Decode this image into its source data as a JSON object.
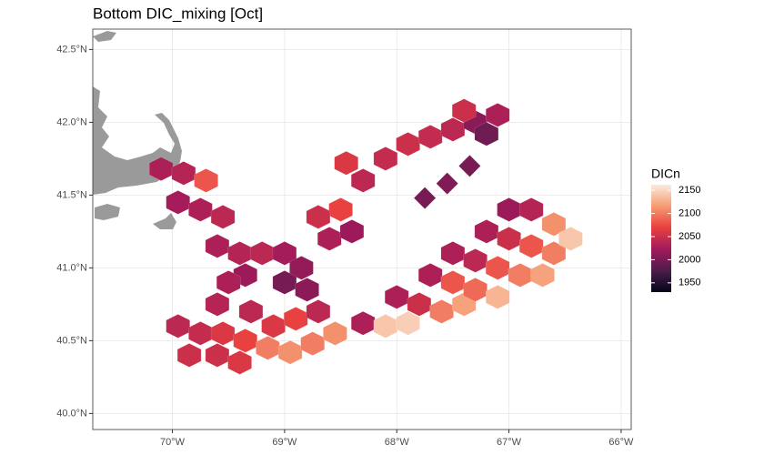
{
  "chart_data": {
    "type": "map",
    "title": "Bottom DIC_mixing [Oct]",
    "legend_title": "DICn",
    "xlim": [
      -70.71,
      -65.91
    ],
    "ylim": [
      39.89,
      42.64
    ],
    "xticks": [
      {
        "value": -70,
        "label": "70°W"
      },
      {
        "value": -69,
        "label": "69°W"
      },
      {
        "value": -68,
        "label": "68°W"
      },
      {
        "value": -67,
        "label": "67°W"
      },
      {
        "value": -66,
        "label": "66°W"
      }
    ],
    "yticks": [
      {
        "value": 40,
        "label": "40.0°N"
      },
      {
        "value": 40.5,
        "label": "40.5°N"
      },
      {
        "value": 41,
        "label": "41.0°N"
      },
      {
        "value": 41.5,
        "label": "41.5°N"
      },
      {
        "value": 42,
        "label": "42.0°N"
      },
      {
        "value": 42.5,
        "label": "42.5°N"
      }
    ],
    "grid": true,
    "colorlim": [
      1930,
      2162
    ],
    "colorticks": [
      1950,
      2000,
      2050,
      2100,
      2150
    ],
    "colorscale": [
      "#03051a",
      "#4c1d4b",
      "#a11a5b",
      "#e83f3f",
      "#f69c73",
      "#faebdd"
    ],
    "values": [
      2030,
      2035,
      2080,
      2025,
      2030,
      2040,
      2030,
      2035,
      2040,
      2020,
      2030,
      2025,
      2015,
      2000,
      2010,
      2030,
      2070,
      2050,
      2020,
      2040,
      2045,
      2050,
      2045,
      2040,
      2010,
      2030,
      1995,
      2050,
      2060,
      2000,
      2005,
      2000,
      2040,
      2045,
      2060,
      2070,
      2100,
      2110,
      2100,
      2110,
      2050,
      2050,
      2060,
      2060,
      2040,
      2035,
      2070,
      2040,
      2030,
      2140,
      2145,
      2030,
      2050,
      2100,
      2120,
      2030,
      2080,
      2090,
      2130,
      2030,
      2040,
      2080,
      2100,
      2120,
      2030,
      2050,
      2080,
      2100,
      2020,
      2035,
      2110,
      2140
    ]
  }
}
